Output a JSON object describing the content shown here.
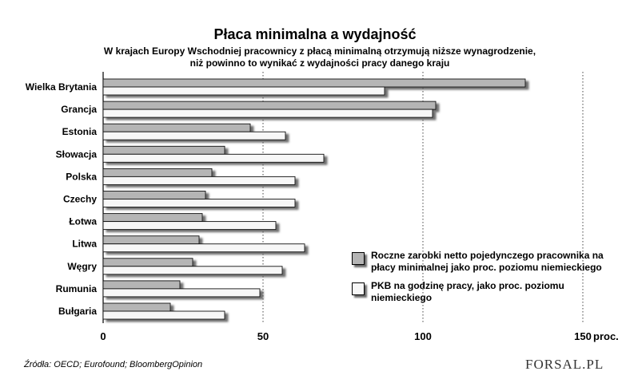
{
  "logo": "FORSAL.PL",
  "chart_data": {
    "type": "bar",
    "orientation": "horizontal",
    "title": "Płaca minimalna a wydajność",
    "subtitle": [
      "W krajach Europy Wschodniej pracownicy z płacą minimalną otrzymują niższe wynagrodzenie,",
      "niż powinno to wynikać z wydajności pracy danego kraju"
    ],
    "categories": [
      "Wielka Brytania",
      "Grancja",
      "Estonia",
      "Słowacja",
      "Polska",
      "Czechy",
      "Łotwa",
      "Litwa",
      "Węgry",
      "Rumunia",
      "Bułgaria"
    ],
    "series": [
      {
        "name": "Roczne zarobki netto pojedynczego pracownika na płacy minimalnej jako proc. poziomu niemieckiego",
        "color": "#b5b5b5",
        "values": [
          132,
          104,
          46,
          38,
          34,
          32,
          31,
          30,
          28,
          24,
          21
        ]
      },
      {
        "name": "PKB na godzinę pracy, jako proc. poziomu niemieckiego",
        "color": "#f7f7f7",
        "values": [
          88,
          103,
          57,
          69,
          60,
          60,
          54,
          63,
          56,
          49,
          38
        ]
      }
    ],
    "xlim": [
      0,
      150
    ],
    "xticks": [
      0,
      50,
      100,
      150
    ],
    "xtick_suffix": "proc.",
    "grid": "vertical dotted",
    "legend_position": "bottom-right",
    "source": "Źródła: OECD; Eurofound; BloombergOpinion"
  }
}
